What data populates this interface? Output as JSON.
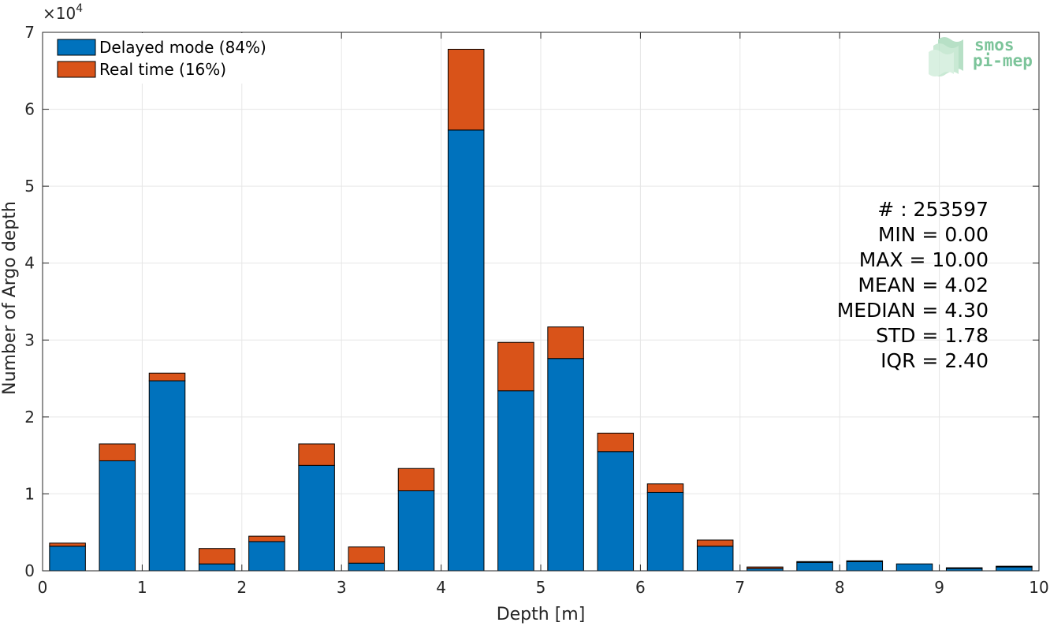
{
  "chart_data": {
    "type": "bar",
    "stacked": true,
    "xlabel": "Depth [m]",
    "ylabel": "Number of Argo depth",
    "xlim": [
      0,
      10
    ],
    "ylim": [
      0,
      70000
    ],
    "y_exponent_label": "×10",
    "y_exponent_power": "4",
    "x_ticks": [
      "0",
      "1",
      "2",
      "3",
      "4",
      "5",
      "6",
      "7",
      "8",
      "9",
      "10"
    ],
    "y_ticks": [
      "0",
      "1",
      "2",
      "3",
      "4",
      "5",
      "6",
      "7"
    ],
    "grid": true,
    "legend_position": "top-left",
    "x": [
      0.25,
      0.75,
      1.25,
      1.75,
      2.25,
      2.75,
      3.25,
      3.75,
      4.25,
      4.75,
      5.25,
      5.75,
      6.25,
      6.75,
      7.25,
      7.75,
      8.25,
      8.75,
      9.25,
      9.75
    ],
    "series": [
      {
        "name": "Delayed mode (84%)",
        "color": "#0072bd",
        "values": [
          3200,
          14300,
          24700,
          900,
          3800,
          13700,
          1000,
          10400,
          57300,
          23400,
          27600,
          15500,
          10200,
          3200,
          300,
          1100,
          1200,
          900,
          300,
          500
        ]
      },
      {
        "name": "Real time (16%)",
        "color": "#d95319",
        "values": [
          400,
          2200,
          1000,
          2000,
          700,
          2800,
          2100,
          2900,
          10500,
          6300,
          4100,
          2400,
          1100,
          800,
          200,
          100,
          100,
          0,
          100,
          100
        ]
      }
    ],
    "stats_lines": [
      "# : 253597",
      "MIN = 0.00",
      "MAX =  10.00",
      "MEAN = 4.02",
      "MEDIAN = 4.30",
      "STD = 1.78",
      "IQR = 2.40"
    ]
  },
  "logo": {
    "line1": "smos",
    "line2": "pi-mep",
    "color": "#7cc49a"
  }
}
